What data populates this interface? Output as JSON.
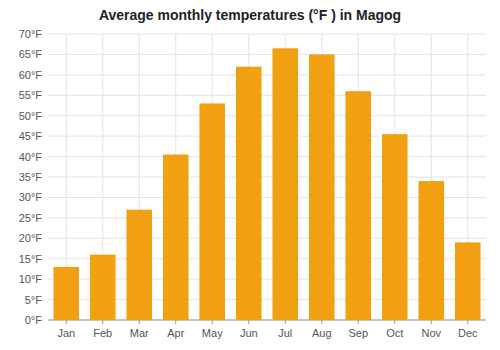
{
  "chart_data": {
    "type": "bar",
    "title": "Average monthly temperatures (°F ) in Magog",
    "categories": [
      "Jan",
      "Feb",
      "Mar",
      "Apr",
      "May",
      "Jun",
      "Jul",
      "Aug",
      "Sep",
      "Oct",
      "Nov",
      "Dec"
    ],
    "values": [
      13,
      16,
      27,
      40.5,
      53,
      62,
      66.5,
      65,
      56,
      45.5,
      34,
      19
    ],
    "color": "#F0A010",
    "ylim": [
      0,
      70
    ],
    "yticks": [
      {
        "value": 0,
        "label": "0°F"
      },
      {
        "value": 5,
        "label": "5°F"
      },
      {
        "value": 10,
        "label": "10°F"
      },
      {
        "value": 15,
        "label": "15°F"
      },
      {
        "value": 20,
        "label": "20°F"
      },
      {
        "value": 25,
        "label": "25°F"
      },
      {
        "value": 30,
        "label": "30°F"
      },
      {
        "value": 35,
        "label": "35°F"
      },
      {
        "value": 40,
        "label": "40°F"
      },
      {
        "value": 45,
        "label": "45°F"
      },
      {
        "value": 50,
        "label": "50°F"
      },
      {
        "value": 55,
        "label": "55°F"
      },
      {
        "value": 60,
        "label": "60°F"
      },
      {
        "value": 65,
        "label": "65°F"
      },
      {
        "value": 70,
        "label": "70°F"
      }
    ],
    "grid": true
  }
}
